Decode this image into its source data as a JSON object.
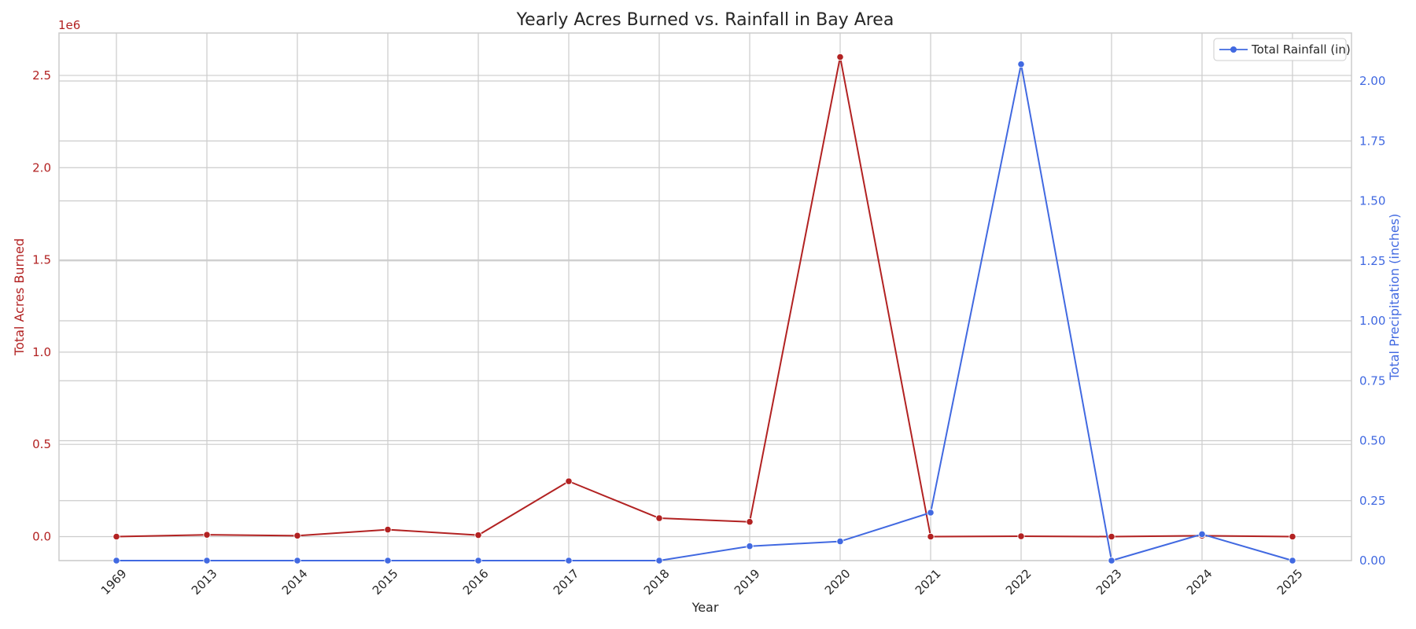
{
  "chart_data": {
    "type": "line",
    "title": "Yearly Acres Burned vs. Rainfall in Bay Area",
    "xlabel": "Year",
    "categories": [
      "1969",
      "2013",
      "2014",
      "2015",
      "2016",
      "2017",
      "2018",
      "2019",
      "2020",
      "2021",
      "2022",
      "2023",
      "2024",
      "2025"
    ],
    "left_axis": {
      "label": "Total Acres Burned",
      "offset_text": "1e6",
      "color": "#b22222",
      "range": [
        -0.13,
        2.73
      ],
      "ticks": [
        0.0,
        0.5,
        1.0,
        1.5,
        2.0,
        2.5
      ],
      "tick_labels": [
        "0.0",
        "0.5",
        "1.0",
        "1.5",
        "2.0",
        "2.5"
      ]
    },
    "right_axis": {
      "label": "Total Precipitation (inches)",
      "color": "#4169e1",
      "range": [
        0.0,
        2.2
      ],
      "ticks": [
        0.0,
        0.25,
        0.5,
        0.75,
        1.0,
        1.25,
        1.5,
        1.75,
        2.0
      ],
      "tick_labels": [
        "0.00",
        "0.25",
        "0.50",
        "0.75",
        "1.00",
        "1.25",
        "1.50",
        "1.75",
        "2.00"
      ]
    },
    "series": [
      {
        "axis": "left",
        "color": "#b22222",
        "values": [
          0.0,
          0.01,
          0.005,
          0.038,
          0.008,
          0.3,
          0.1,
          0.08,
          2.6,
          0.0,
          0.002,
          0.0,
          0.005,
          0.0
        ]
      },
      {
        "name": "Total Rainfall (in)",
        "axis": "right",
        "color": "#4169e1",
        "values": [
          0.0,
          0.0,
          0.0,
          0.0,
          0.0,
          0.0,
          0.0,
          0.06,
          0.08,
          0.2,
          2.07,
          0.0,
          0.11,
          0.0
        ]
      }
    ],
    "grid": true,
    "legend_position": "top-right"
  }
}
